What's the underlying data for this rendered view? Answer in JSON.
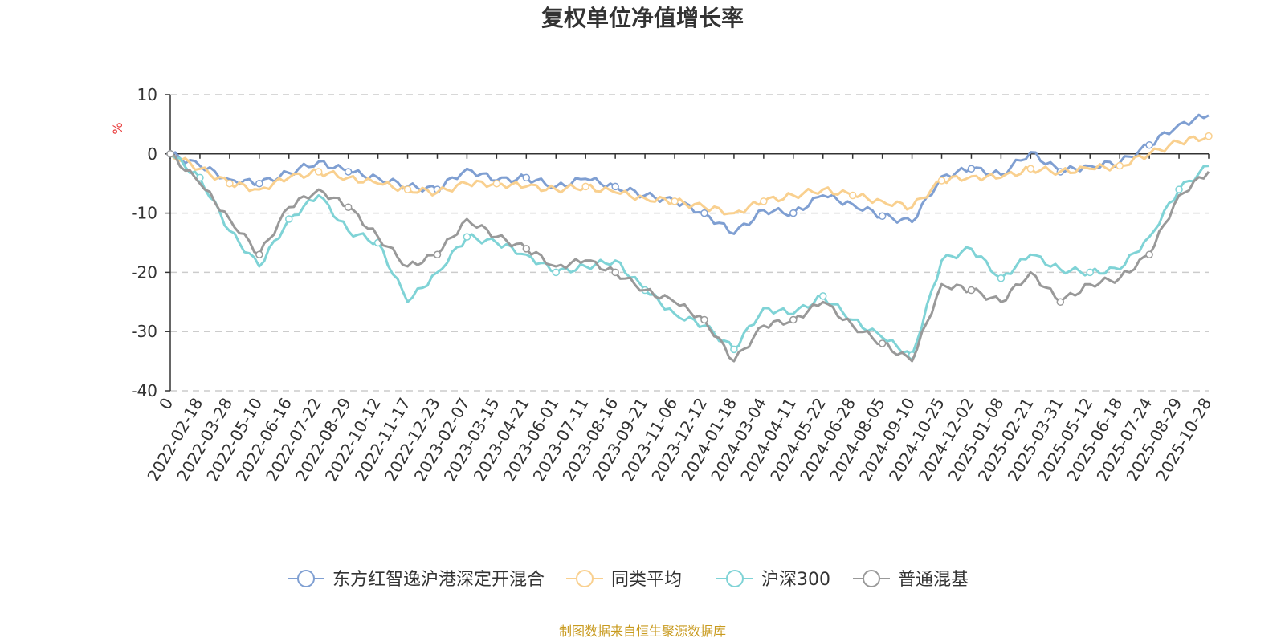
{
  "chart_data": {
    "type": "line",
    "title": "复权单位净值增长率",
    "ylabel": "%",
    "ylim": [
      -40,
      10
    ],
    "yticks": [
      10,
      0,
      -10,
      -20,
      -30,
      -40
    ],
    "x_labels": [
      "0",
      "2022-02-18",
      "2022-03-28",
      "2022-05-10",
      "2022-06-16",
      "2022-07-22",
      "2022-08-29",
      "2022-10-12",
      "2022-11-17",
      "2022-12-23",
      "2023-02-07",
      "2023-03-15",
      "2023-04-21",
      "2023-06-01",
      "2023-07-11",
      "2023-08-16",
      "2023-09-21",
      "2023-11-06",
      "2023-12-12",
      "2024-01-18",
      "2024-03-04",
      "2024-04-11",
      "2024-05-22",
      "2024-06-28",
      "2024-08-05",
      "2024-09-10",
      "2024-10-25",
      "2024-12-02",
      "2025-01-08",
      "2025-02-21",
      "2025-03-31",
      "2025-05-12",
      "2025-06-18",
      "2025-07-24",
      "2025-08-29",
      "2025-10-28"
    ],
    "grid": true,
    "legend_position": "bottom",
    "series": [
      {
        "name": "东方红智逸沪港深定开混合",
        "color": "#7f9fd2",
        "values": [
          0,
          -2.0,
          -4.3,
          -5.0,
          -3.2,
          -1.3,
          -3.0,
          -4.0,
          -5.5,
          -6.0,
          -2.5,
          -4.5,
          -4.0,
          -5.5,
          -4.2,
          -5.5,
          -7.0,
          -8.0,
          -10.0,
          -13.5,
          -9.5,
          -10.0,
          -7.0,
          -8.5,
          -10.5,
          -11.5,
          -3.8,
          -2.5,
          -3.5,
          0.3,
          -3.0,
          -2.0,
          -1.5,
          1.5,
          5.0,
          6.5
        ]
      },
      {
        "name": "同类平均",
        "color": "#f9d08f",
        "values": [
          0,
          -2.5,
          -5.0,
          -6.0,
          -4.0,
          -3.0,
          -4.0,
          -5.0,
          -6.0,
          -6.5,
          -5.0,
          -5.0,
          -5.5,
          -6.0,
          -5.5,
          -6.5,
          -7.5,
          -8.0,
          -9.0,
          -10.0,
          -8.0,
          -7.0,
          -6.0,
          -7.0,
          -8.0,
          -9.0,
          -4.5,
          -3.8,
          -4.0,
          -2.5,
          -3.0,
          -2.5,
          -2.0,
          0.0,
          2.0,
          3.0
        ]
      },
      {
        "name": "沪深300",
        "color": "#7fd3d6",
        "values": [
          0,
          -4.0,
          -13.0,
          -19.0,
          -11.0,
          -7.0,
          -13.0,
          -15.0,
          -25.0,
          -20.0,
          -14.0,
          -15.0,
          -17.0,
          -20.0,
          -19.0,
          -18.0,
          -23.0,
          -27.0,
          -29.0,
          -33.0,
          -26.0,
          -27.0,
          -24.0,
          -28.0,
          -31.0,
          -34.0,
          -18.0,
          -16.0,
          -21.0,
          -17.0,
          -19.5,
          -20.0,
          -19.5,
          -14.0,
          -6.0,
          -2.0
        ]
      },
      {
        "name": "普通混基",
        "color": "#999999",
        "values": [
          0,
          -5.0,
          -11.0,
          -17.0,
          -9.0,
          -6.0,
          -9.0,
          -14.0,
          -19.0,
          -17.0,
          -11.0,
          -14.0,
          -16.0,
          -19.0,
          -18.0,
          -20.0,
          -23.0,
          -25.0,
          -28.0,
          -35.0,
          -29.0,
          -28.0,
          -25.0,
          -29.0,
          -32.0,
          -35.0,
          -22.0,
          -23.0,
          -25.0,
          -20.0,
          -25.0,
          -22.0,
          -21.0,
          -17.0,
          -7.0,
          -3.0
        ]
      }
    ]
  },
  "footer": {
    "source": "制图数据来自恒生聚源数据库"
  }
}
